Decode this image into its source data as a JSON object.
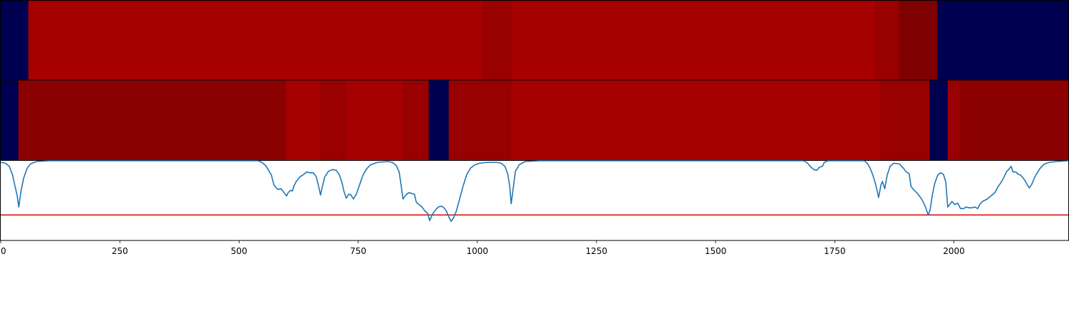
{
  "chart_data": {
    "type": "heatmap",
    "x_range": [
      0,
      2240
    ],
    "x_ticks": [
      0,
      250,
      500,
      750,
      1000,
      1250,
      1500,
      1750,
      2000
    ],
    "x_tick_labels": [
      "0",
      "250",
      "500",
      "750",
      "1000",
      "1250",
      "1500",
      "1750",
      "2000"
    ],
    "heatmap_rows": [
      {
        "segments": [
          {
            "start": 0,
            "end": 58,
            "color": "#000050"
          },
          {
            "start": 58,
            "end": 1009,
            "color": "#a60000"
          },
          {
            "start": 1009,
            "end": 1073,
            "color": "#990000"
          },
          {
            "start": 1073,
            "end": 1834,
            "color": "#a60000"
          },
          {
            "start": 1834,
            "end": 1885,
            "color": "#990000"
          },
          {
            "start": 1885,
            "end": 1965,
            "color": "#7f0000"
          },
          {
            "start": 1965,
            "end": 2240,
            "color": "#000050"
          }
        ]
      },
      {
        "segments": [
          {
            "start": 0,
            "end": 37,
            "color": "#000050"
          },
          {
            "start": 37,
            "end": 598,
            "color": "#8b0000"
          },
          {
            "start": 598,
            "end": 671,
            "color": "#a60000"
          },
          {
            "start": 671,
            "end": 725,
            "color": "#990000"
          },
          {
            "start": 725,
            "end": 843,
            "color": "#a60000"
          },
          {
            "start": 843,
            "end": 898,
            "color": "#990000"
          },
          {
            "start": 898,
            "end": 940,
            "color": "#000050"
          },
          {
            "start": 940,
            "end": 1071,
            "color": "#990000"
          },
          {
            "start": 1071,
            "end": 1846,
            "color": "#a60000"
          },
          {
            "start": 1846,
            "end": 1949,
            "color": "#990000"
          },
          {
            "start": 1949,
            "end": 1987,
            "color": "#000050"
          },
          {
            "start": 1987,
            "end": 2014,
            "color": "#990000"
          },
          {
            "start": 2014,
            "end": 2240,
            "color": "#8b0000"
          }
        ]
      }
    ],
    "line_panel": {
      "y_range": [
        0,
        1
      ],
      "threshold": 0.32,
      "threshold_color": "#e00000",
      "line_color": "#1f77b4",
      "points": [
        [
          0,
          0.98
        ],
        [
          10,
          0.97
        ],
        [
          18,
          0.93
        ],
        [
          25,
          0.82
        ],
        [
          30,
          0.68
        ],
        [
          34,
          0.58
        ],
        [
          38,
          0.42
        ],
        [
          42,
          0.6
        ],
        [
          48,
          0.78
        ],
        [
          55,
          0.9
        ],
        [
          62,
          0.96
        ],
        [
          75,
          0.99
        ],
        [
          100,
          1.0
        ],
        [
          540,
          1.0
        ],
        [
          548,
          0.98
        ],
        [
          556,
          0.94
        ],
        [
          562,
          0.88
        ],
        [
          568,
          0.82
        ],
        [
          573,
          0.7
        ],
        [
          578,
          0.66
        ],
        [
          582,
          0.64
        ],
        [
          588,
          0.65
        ],
        [
          592,
          0.62
        ],
        [
          597,
          0.58
        ],
        [
          600,
          0.56
        ],
        [
          603,
          0.6
        ],
        [
          608,
          0.63
        ],
        [
          612,
          0.62
        ],
        [
          615,
          0.68
        ],
        [
          620,
          0.74
        ],
        [
          628,
          0.8
        ],
        [
          636,
          0.83
        ],
        [
          642,
          0.86
        ],
        [
          648,
          0.85
        ],
        [
          656,
          0.85
        ],
        [
          662,
          0.8
        ],
        [
          667,
          0.68
        ],
        [
          671,
          0.57
        ],
        [
          675,
          0.68
        ],
        [
          680,
          0.8
        ],
        [
          688,
          0.87
        ],
        [
          696,
          0.89
        ],
        [
          704,
          0.88
        ],
        [
          710,
          0.83
        ],
        [
          716,
          0.73
        ],
        [
          720,
          0.62
        ],
        [
          725,
          0.53
        ],
        [
          730,
          0.58
        ],
        [
          735,
          0.57
        ],
        [
          740,
          0.52
        ],
        [
          746,
          0.58
        ],
        [
          752,
          0.68
        ],
        [
          760,
          0.82
        ],
        [
          768,
          0.9
        ],
        [
          776,
          0.95
        ],
        [
          790,
          0.98
        ],
        [
          812,
          0.99
        ],
        [
          822,
          0.98
        ],
        [
          830,
          0.94
        ],
        [
          836,
          0.86
        ],
        [
          840,
          0.7
        ],
        [
          844,
          0.52
        ],
        [
          850,
          0.57
        ],
        [
          856,
          0.6
        ],
        [
          862,
          0.59
        ],
        [
          868,
          0.58
        ],
        [
          872,
          0.48
        ],
        [
          878,
          0.45
        ],
        [
          884,
          0.42
        ],
        [
          890,
          0.37
        ],
        [
          896,
          0.34
        ],
        [
          900,
          0.25
        ],
        [
          906,
          0.33
        ],
        [
          912,
          0.38
        ],
        [
          918,
          0.42
        ],
        [
          925,
          0.43
        ],
        [
          930,
          0.41
        ],
        [
          935,
          0.37
        ],
        [
          940,
          0.3
        ],
        [
          945,
          0.24
        ],
        [
          950,
          0.28
        ],
        [
          956,
          0.37
        ],
        [
          962,
          0.5
        ],
        [
          970,
          0.68
        ],
        [
          978,
          0.83
        ],
        [
          986,
          0.91
        ],
        [
          995,
          0.95
        ],
        [
          1005,
          0.97
        ],
        [
          1020,
          0.98
        ],
        [
          1040,
          0.98
        ],
        [
          1050,
          0.97
        ],
        [
          1058,
          0.93
        ],
        [
          1064,
          0.83
        ],
        [
          1068,
          0.68
        ],
        [
          1071,
          0.46
        ],
        [
          1075,
          0.64
        ],
        [
          1080,
          0.87
        ],
        [
          1088,
          0.95
        ],
        [
          1100,
          0.99
        ],
        [
          1130,
          1.0
        ],
        [
          1685,
          1.0
        ],
        [
          1693,
          0.97
        ],
        [
          1700,
          0.92
        ],
        [
          1706,
          0.89
        ],
        [
          1712,
          0.88
        ],
        [
          1718,
          0.92
        ],
        [
          1724,
          0.93
        ],
        [
          1728,
          0.98
        ],
        [
          1735,
          1.0
        ],
        [
          1812,
          1.0
        ],
        [
          1818,
          0.97
        ],
        [
          1824,
          0.91
        ],
        [
          1830,
          0.82
        ],
        [
          1836,
          0.7
        ],
        [
          1842,
          0.54
        ],
        [
          1847,
          0.7
        ],
        [
          1850,
          0.74
        ],
        [
          1855,
          0.65
        ],
        [
          1860,
          0.82
        ],
        [
          1866,
          0.93
        ],
        [
          1874,
          0.97
        ],
        [
          1886,
          0.96
        ],
        [
          1895,
          0.9
        ],
        [
          1900,
          0.86
        ],
        [
          1906,
          0.84
        ],
        [
          1910,
          0.68
        ],
        [
          1915,
          0.64
        ],
        [
          1922,
          0.6
        ],
        [
          1930,
          0.54
        ],
        [
          1936,
          0.48
        ],
        [
          1941,
          0.41
        ],
        [
          1946,
          0.32
        ],
        [
          1950,
          0.38
        ],
        [
          1955,
          0.58
        ],
        [
          1960,
          0.72
        ],
        [
          1966,
          0.82
        ],
        [
          1972,
          0.85
        ],
        [
          1978,
          0.83
        ],
        [
          1983,
          0.73
        ],
        [
          1987,
          0.42
        ],
        [
          1991,
          0.45
        ],
        [
          1996,
          0.49
        ],
        [
          2002,
          0.45
        ],
        [
          2008,
          0.47
        ],
        [
          2014,
          0.4
        ],
        [
          2020,
          0.4
        ],
        [
          2026,
          0.42
        ],
        [
          2032,
          0.41
        ],
        [
          2038,
          0.41
        ],
        [
          2044,
          0.42
        ],
        [
          2050,
          0.4
        ],
        [
          2054,
          0.45
        ],
        [
          2060,
          0.49
        ],
        [
          2070,
          0.52
        ],
        [
          2078,
          0.56
        ],
        [
          2086,
          0.6
        ],
        [
          2092,
          0.67
        ],
        [
          2098,
          0.72
        ],
        [
          2104,
          0.78
        ],
        [
          2110,
          0.86
        ],
        [
          2116,
          0.9
        ],
        [
          2120,
          0.93
        ],
        [
          2124,
          0.86
        ],
        [
          2130,
          0.86
        ],
        [
          2135,
          0.83
        ],
        [
          2140,
          0.82
        ],
        [
          2146,
          0.78
        ],
        [
          2152,
          0.72
        ],
        [
          2158,
          0.66
        ],
        [
          2163,
          0.7
        ],
        [
          2170,
          0.8
        ],
        [
          2180,
          0.9
        ],
        [
          2190,
          0.96
        ],
        [
          2200,
          0.98
        ],
        [
          2215,
          0.99
        ],
        [
          2240,
          1.0
        ]
      ]
    }
  }
}
